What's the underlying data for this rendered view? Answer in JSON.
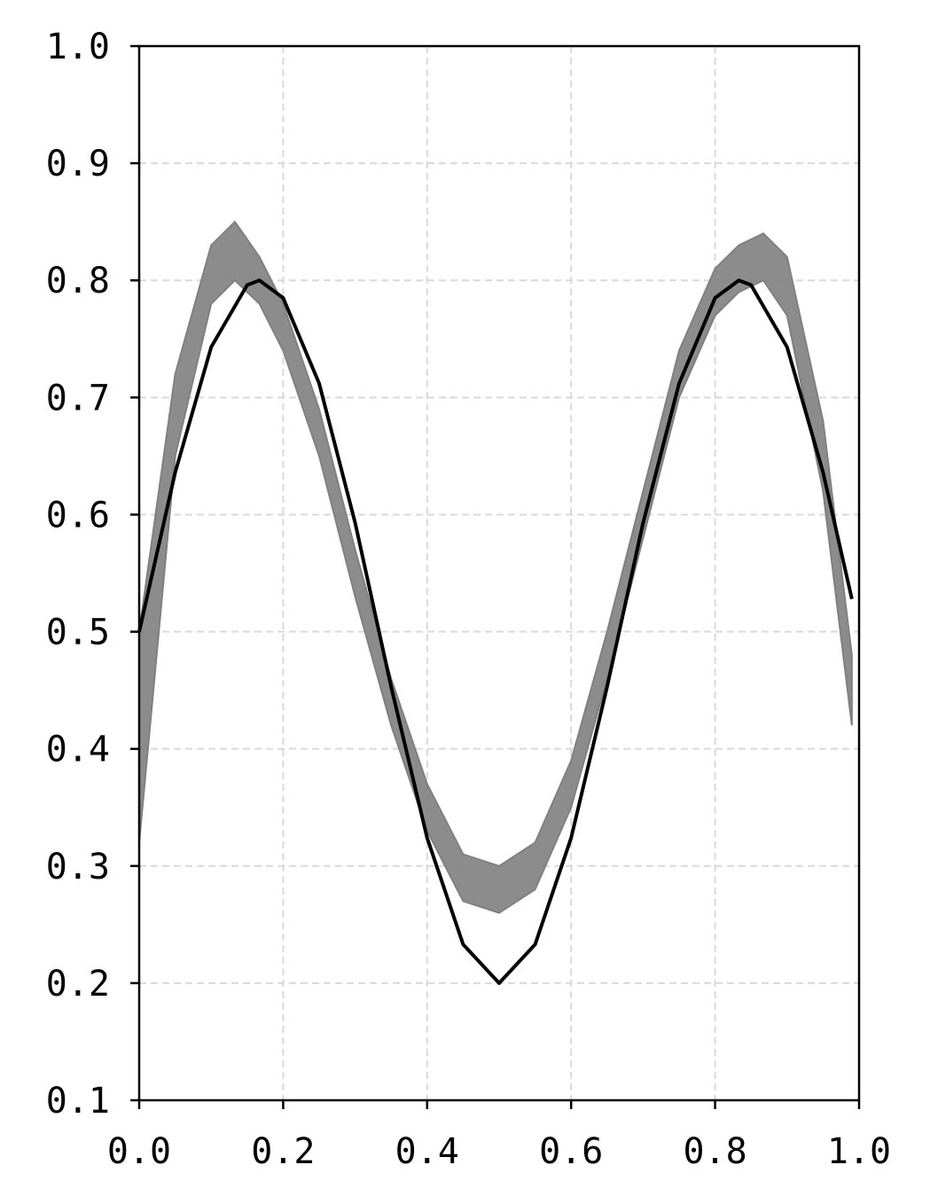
{
  "chart_data": {
    "type": "line",
    "x": [
      0,
      0.05,
      0.1,
      0.15,
      0.167,
      0.2,
      0.25,
      0.3,
      0.35,
      0.4,
      0.45,
      0.5,
      0.55,
      0.6,
      0.65,
      0.7,
      0.75,
      0.8,
      0.833,
      0.85,
      0.9,
      0.95,
      0.99
    ],
    "series": [
      {
        "color": "#000000",
        "values": [
          0.5,
          0.636,
          0.743,
          0.796,
          0.8,
          0.785,
          0.712,
          0.593,
          0.453,
          0.324,
          0.233,
          0.2,
          0.233,
          0.324,
          0.453,
          0.593,
          0.712,
          0.785,
          0.8,
          0.796,
          0.743,
          0.636,
          0.528
        ]
      }
    ],
    "band": {
      "color": "#808080",
      "x": [
        0,
        0.05,
        0.1,
        0.133,
        0.167,
        0.2,
        0.25,
        0.3,
        0.35,
        0.4,
        0.45,
        0.5,
        0.55,
        0.6,
        0.65,
        0.7,
        0.75,
        0.8,
        0.833,
        0.867,
        0.9,
        0.95,
        0.99
      ],
      "lower": [
        0.32,
        0.65,
        0.78,
        0.8,
        0.78,
        0.74,
        0.65,
        0.53,
        0.42,
        0.33,
        0.27,
        0.26,
        0.28,
        0.35,
        0.46,
        0.58,
        0.7,
        0.77,
        0.79,
        0.8,
        0.77,
        0.62,
        0.42
      ],
      "upper": [
        0.5,
        0.72,
        0.83,
        0.85,
        0.82,
        0.78,
        0.69,
        0.57,
        0.46,
        0.37,
        0.31,
        0.3,
        0.32,
        0.39,
        0.5,
        0.62,
        0.74,
        0.81,
        0.83,
        0.84,
        0.82,
        0.68,
        0.48
      ]
    },
    "xlim": [
      0,
      1
    ],
    "ylim": [
      0.1,
      1
    ],
    "xticks": [
      {
        "value": 0,
        "label": "0.0"
      },
      0.2,
      0.4,
      0.6,
      0.8,
      {
        "value": 1,
        "label": "1.0"
      }
    ],
    "yticks": [
      0.1,
      0.2,
      0.3,
      0.4,
      0.5,
      0.6,
      0.7,
      0.8,
      0.9,
      {
        "value": 1,
        "label": "1.0"
      }
    ],
    "grid": true
  }
}
